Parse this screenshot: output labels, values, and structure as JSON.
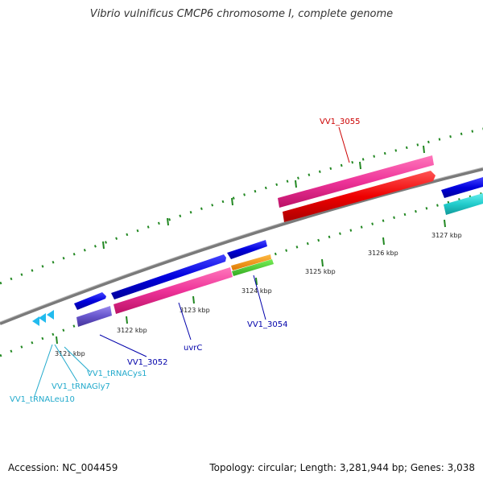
{
  "title": "Vibrio vulnificus CMCP6 chromosome I, complete genome",
  "footer": {
    "accession": "Accession: NC_004459",
    "stats": "Topology: circular; Length: 3,281,944 bp; Genes: 3,038"
  },
  "kbp_ticks": [
    "3121 kbp",
    "3122 kbp",
    "3123 kbp",
    "3124 kbp",
    "3125 kbp",
    "3126 kbp",
    "3127 kbp"
  ],
  "gene_labels": [
    {
      "id": "vv1-3055",
      "text": "VV1_3055",
      "color": "#cc0000"
    },
    {
      "id": "vv1-3054",
      "text": "VV1_3054",
      "color": "#0000aa"
    },
    {
      "id": "uvrc",
      "text": "uvrC",
      "color": "#0000aa"
    },
    {
      "id": "vv1-3052",
      "text": "VV1_3052",
      "color": "#0000aa"
    },
    {
      "id": "vv1-trnacys1",
      "text": "VV1_tRNACys1",
      "color": "#22aacc"
    },
    {
      "id": "vv1-trnagly7",
      "text": "VV1_tRNAGly7",
      "color": "#22aacc"
    },
    {
      "id": "vv1-trnaleu10",
      "text": "VV1_tRNALeu10",
      "color": "#22aacc"
    }
  ],
  "colors": {
    "forward_cds": "#0000dd",
    "reverse_cds": "#ee3399",
    "highlight": "#ee0000",
    "trna": "#22bbee",
    "backbone": "#888888",
    "ticks": "#228822"
  }
}
